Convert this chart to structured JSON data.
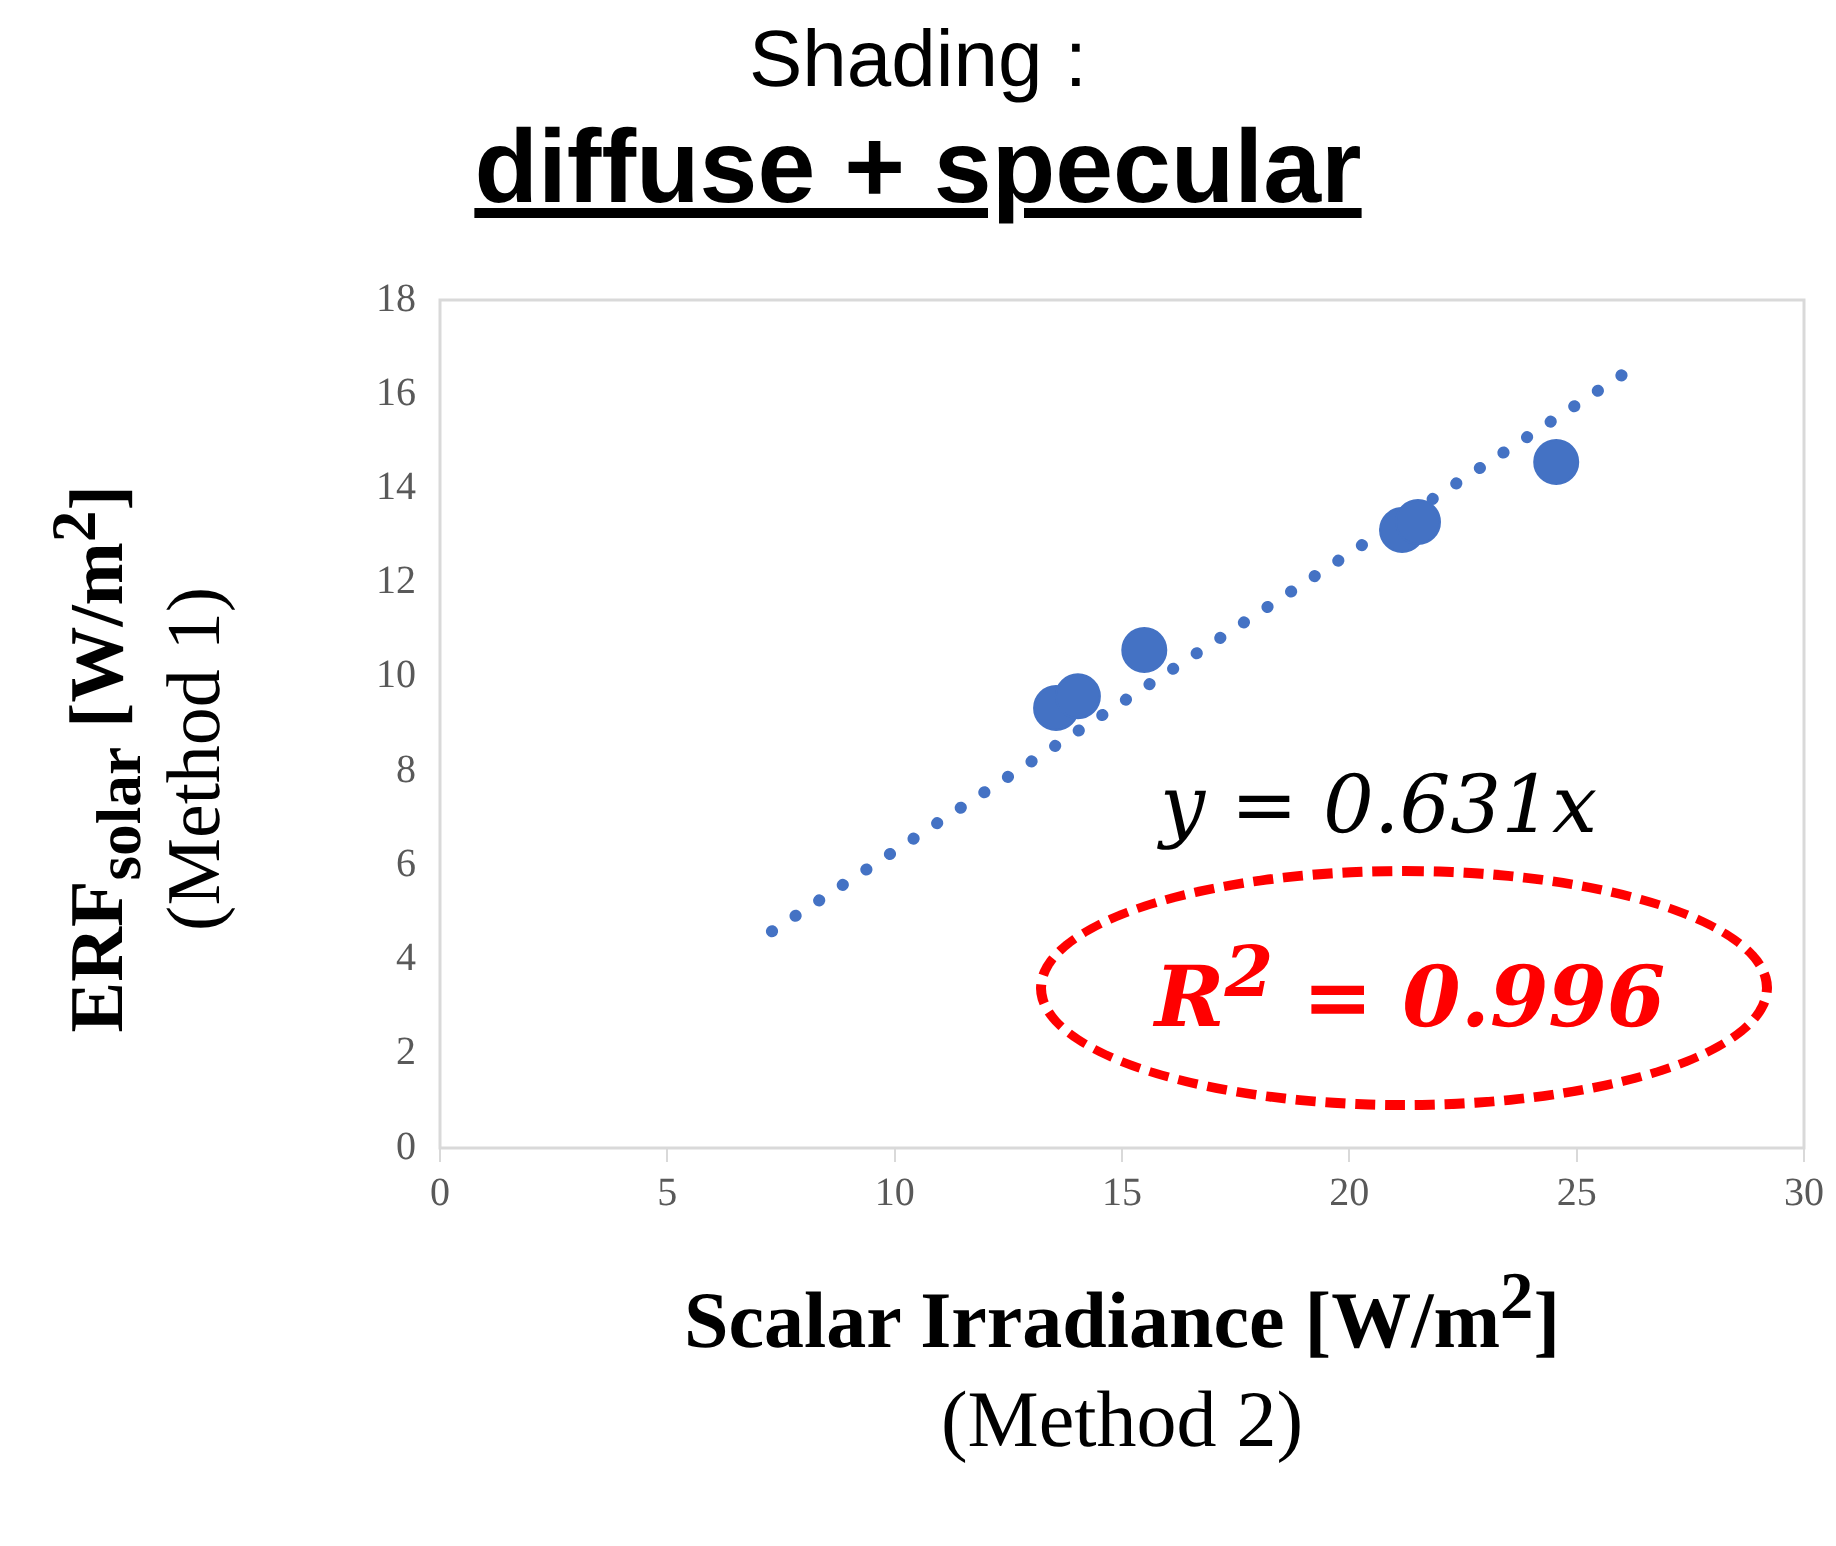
{
  "chart_data": {
    "type": "scatter",
    "title": "Shading :",
    "subtitle": "diffuse + specular",
    "xlabel": "Scalar Irradiance [W/m$^{2}$]\n(Method 2)",
    "ylabel": "ERF$_{solar}$ [W/m$^{2}$]\n(Method 1)",
    "series": [
      {
        "type": "scatter",
        "color": "#4472c4",
        "marker": "circle",
        "x": [
          13.55,
          14.03,
          15.49,
          21.16,
          21.51,
          24.55
        ],
        "values": [
          9.34,
          9.59,
          10.57,
          13.12,
          13.29,
          14.56
        ]
      },
      {
        "type": "line",
        "color": "#4472c4",
        "line_style": "dotted",
        "marker": "none",
        "x": [
          7.3,
          26.3
        ],
        "values": [
          4.6,
          16.6
        ]
      }
    ],
    "annotations": [
      "y = 0.631x",
      "R$^{2}$ = 0.996"
    ],
    "xlim": [
      0,
      30
    ],
    "xticks": [
      0,
      5,
      10,
      15,
      20,
      25,
      30
    ],
    "ylim": [
      0,
      18
    ],
    "yticks": [
      0,
      2,
      4,
      6,
      8,
      10,
      12,
      14,
      16,
      18
    ],
    "grid": false,
    "legend": false
  }
}
